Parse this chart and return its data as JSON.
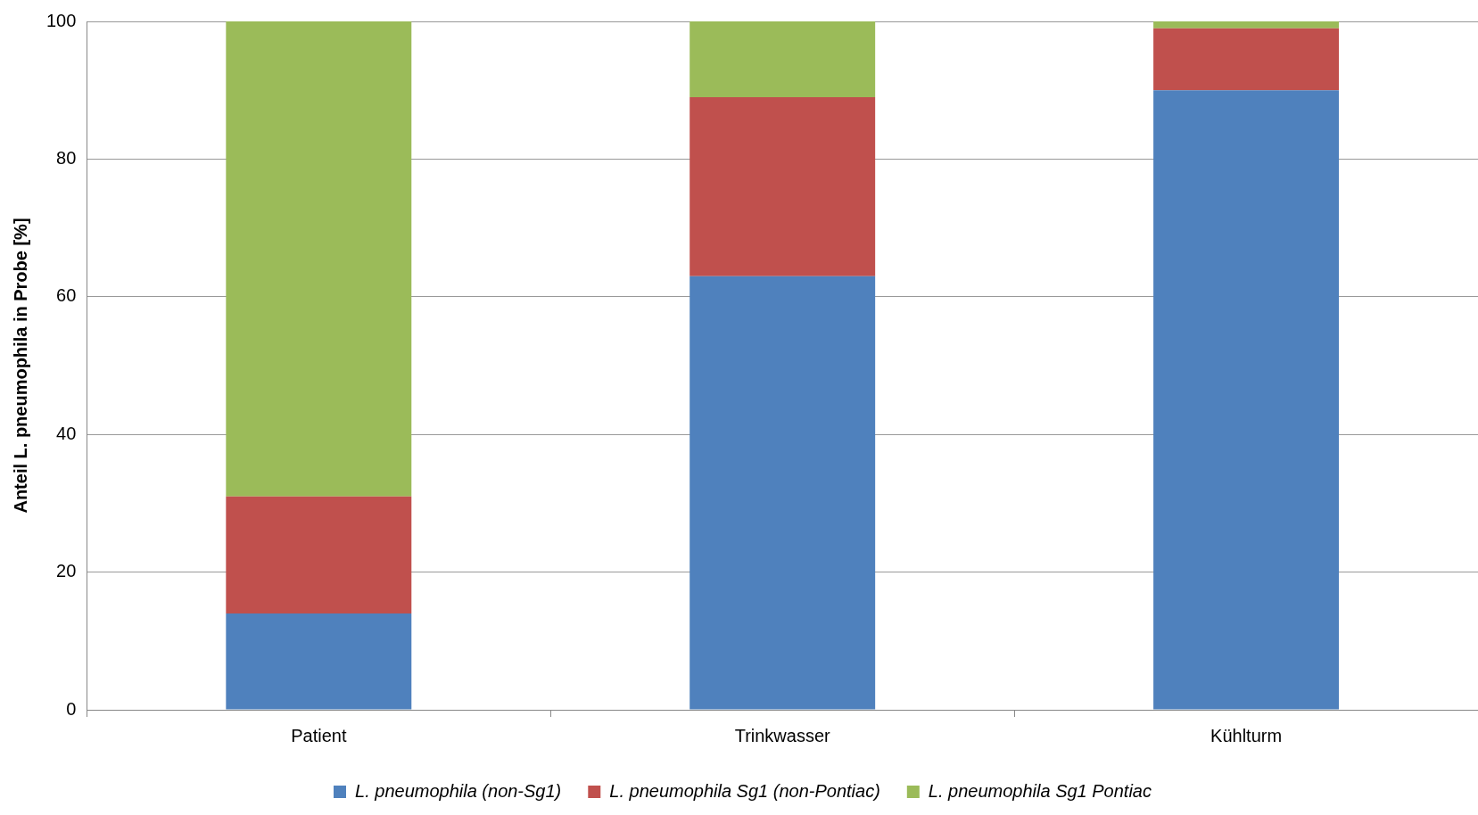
{
  "chart_data": {
    "type": "bar",
    "stacked": true,
    "ylabel": "Anteil L. pneumophila in Probe [%]",
    "categories": [
      "Patient",
      "Trinkwasser",
      "Kühlturm"
    ],
    "series": [
      {
        "name": "L. pneumophila (non-Sg1)",
        "color": "#4f81bd",
        "values": [
          14,
          63,
          90
        ]
      },
      {
        "name": "L. pneumophila Sg1 (non-Pontiac)",
        "color": "#c0504d",
        "values": [
          17,
          26,
          9
        ]
      },
      {
        "name": "L. pneumophila Sg1 Pontiac",
        "color": "#9bbb59",
        "values": [
          69,
          11,
          1
        ]
      }
    ],
    "ylim": [
      0,
      100
    ],
    "yticks": [
      0,
      20,
      40,
      60,
      80,
      100
    ],
    "grid": "y",
    "legend": "bottom"
  }
}
